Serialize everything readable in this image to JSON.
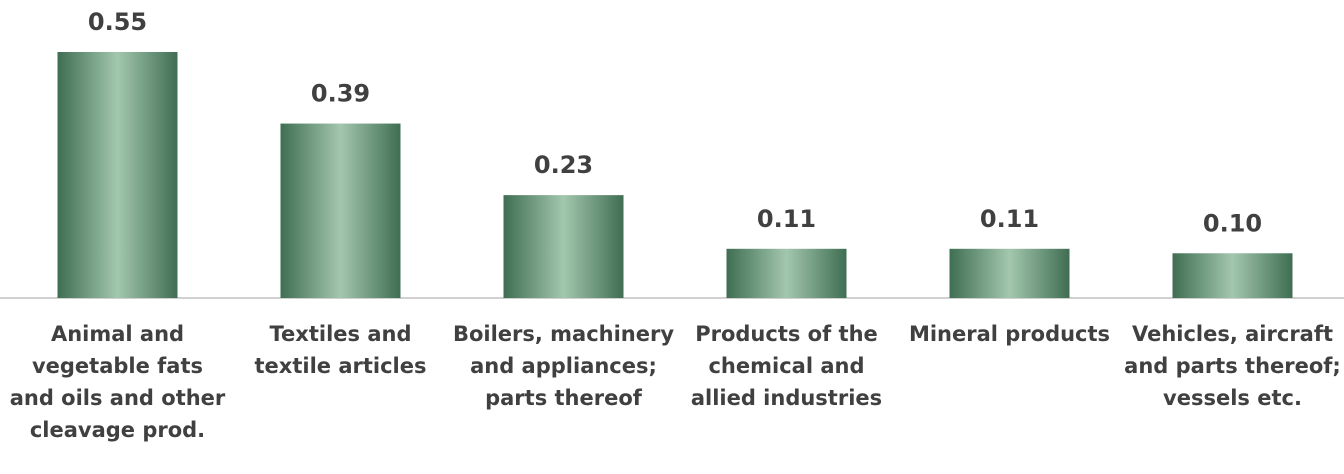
{
  "chart_data": {
    "type": "bar",
    "categories": [
      "Animal and vegetable fats and oils and other cleavage prod.",
      "Textiles and textile articles",
      "Boilers, machinery and appliances; parts thereof",
      "Products of the chemical and allied industries",
      "Mineral products",
      "Vehicles, aircraft and parts thereof; vessels etc."
    ],
    "values": [
      0.55,
      0.39,
      0.23,
      0.11,
      0.11,
      0.1
    ],
    "value_labels": [
      "0.55",
      "0.39",
      "0.23",
      "0.11",
      "0.11",
      "0.10"
    ],
    "color": "#3f6e52"
  }
}
